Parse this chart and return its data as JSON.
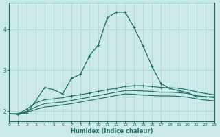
{
  "xlabel": "Humidex (Indice chaleur)",
  "bg_color": "#cce9e9",
  "line_color": "#1a6b60",
  "grid_color": "#aed4d4",
  "x": [
    0,
    1,
    2,
    3,
    4,
    5,
    6,
    7,
    8,
    9,
    10,
    11,
    12,
    13,
    14,
    15,
    16,
    17,
    18,
    19,
    20,
    21,
    22,
    23
  ],
  "line1": [
    1.93,
    1.92,
    1.95,
    2.25,
    2.58,
    2.52,
    2.42,
    2.8,
    2.9,
    3.35,
    3.62,
    4.28,
    4.42,
    4.42,
    4.05,
    3.6,
    3.1,
    2.68,
    2.55,
    2.5,
    2.45,
    2.35,
    2.35,
    2.35
  ],
  "line2": [
    1.93,
    1.93,
    2.05,
    2.2,
    2.28,
    2.3,
    2.33,
    2.37,
    2.4,
    2.44,
    2.48,
    2.52,
    2.56,
    2.6,
    2.62,
    2.62,
    2.6,
    2.58,
    2.57,
    2.56,
    2.52,
    2.47,
    2.43,
    2.4
  ],
  "line3": [
    1.93,
    1.93,
    2.0,
    2.1,
    2.18,
    2.2,
    2.22,
    2.26,
    2.3,
    2.34,
    2.38,
    2.42,
    2.46,
    2.5,
    2.5,
    2.49,
    2.48,
    2.46,
    2.46,
    2.45,
    2.43,
    2.38,
    2.35,
    2.33
  ],
  "line4": [
    1.93,
    1.93,
    1.97,
    2.04,
    2.1,
    2.12,
    2.15,
    2.18,
    2.22,
    2.26,
    2.3,
    2.34,
    2.38,
    2.42,
    2.41,
    2.39,
    2.38,
    2.37,
    2.37,
    2.36,
    2.34,
    2.3,
    2.27,
    2.25
  ],
  "ylim": [
    1.75,
    4.65
  ],
  "xlim": [
    0,
    23
  ],
  "yticks": [
    2,
    3,
    4
  ],
  "xticks": [
    0,
    1,
    2,
    3,
    4,
    5,
    6,
    7,
    8,
    9,
    10,
    11,
    12,
    13,
    14,
    15,
    16,
    17,
    18,
    19,
    20,
    21,
    22,
    23
  ]
}
